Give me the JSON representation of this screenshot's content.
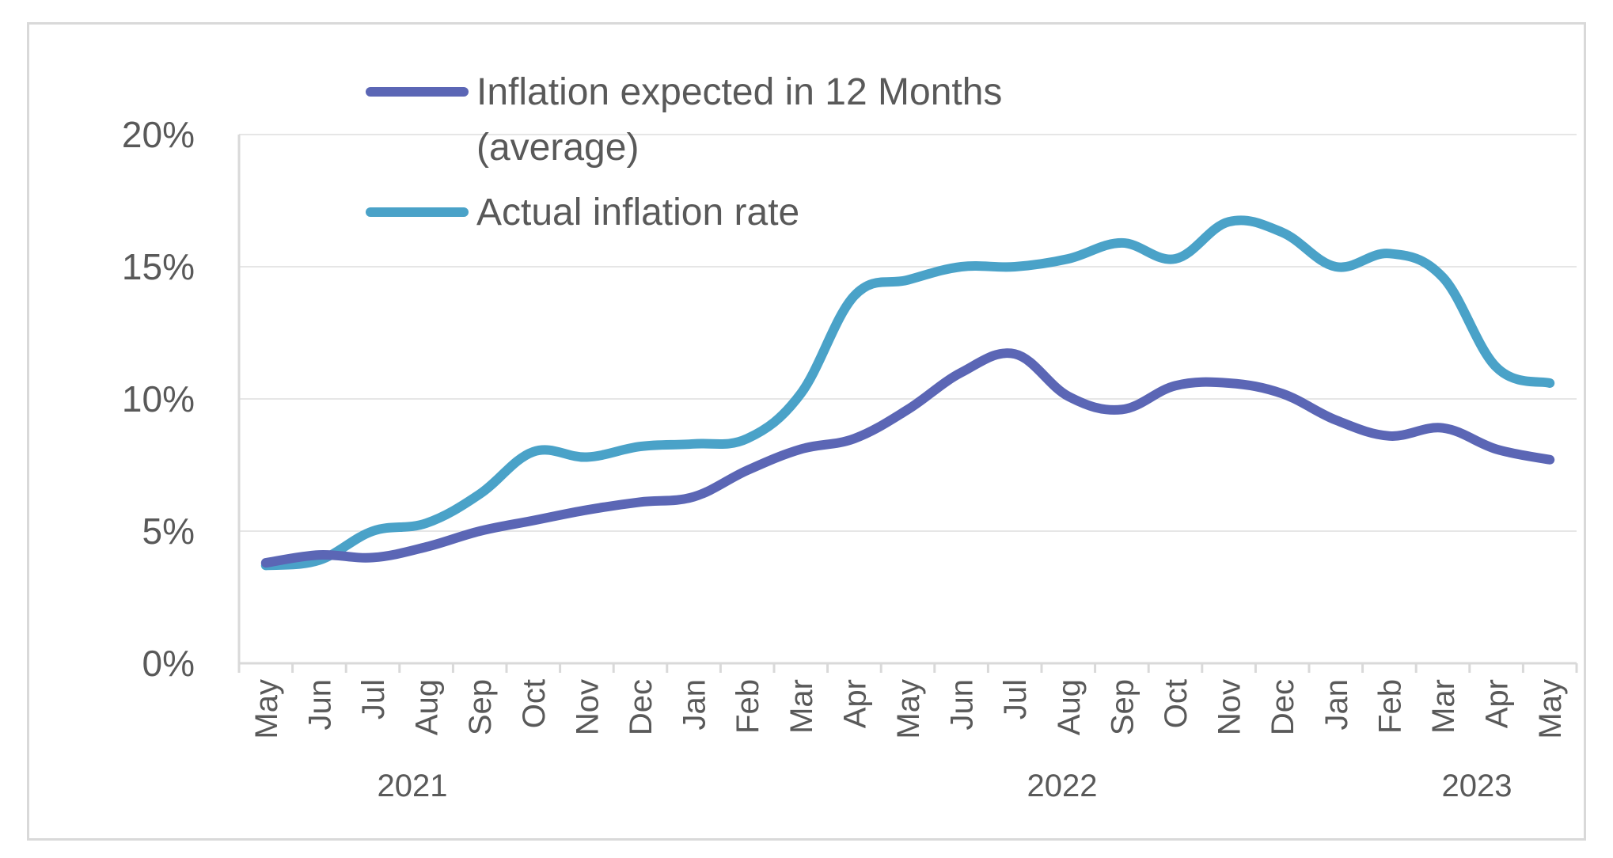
{
  "chart_data": {
    "type": "line",
    "title": "",
    "xlabel": "",
    "ylabel": "",
    "ylim": [
      0,
      20
    ],
    "yticks": [
      "0%",
      "5%",
      "10%",
      "15%",
      "20%"
    ],
    "grid": true,
    "legend_position": "top",
    "categories": [
      "May",
      "Jun",
      "Jul",
      "Aug",
      "Sep",
      "Oct",
      "Nov",
      "Dec",
      "Jan",
      "Feb",
      "Mar",
      "Apr",
      "May",
      "Jun",
      "Jul",
      "Aug",
      "Sep",
      "Oct",
      "Nov",
      "Dec",
      "Jan",
      "Feb",
      "Mar",
      "Apr",
      "May"
    ],
    "year_groups": [
      {
        "label": "2021"
      },
      {
        "label": "2022"
      },
      {
        "label": "2023"
      }
    ],
    "series": [
      {
        "name": "Inflation expected in 12 Months (average)",
        "legend_lines": [
          "Inflation expected in 12 Months",
          "(average)"
        ],
        "color": "#5b66b5",
        "values": [
          3.8,
          4.1,
          4.0,
          4.4,
          5.0,
          5.4,
          5.8,
          6.1,
          6.3,
          7.3,
          8.1,
          8.5,
          9.6,
          11.0,
          11.7,
          10.1,
          9.6,
          10.5,
          10.6,
          10.2,
          9.2,
          8.6,
          8.9,
          8.1,
          7.7
        ]
      },
      {
        "name": "Actual inflation rate",
        "legend_lines": [
          "Actual inflation rate"
        ],
        "color": "#4aa2c8",
        "values": [
          3.7,
          3.9,
          5.0,
          5.3,
          6.4,
          8.0,
          7.8,
          8.2,
          8.3,
          8.5,
          10.2,
          13.9,
          14.5,
          15.0,
          15.0,
          15.3,
          15.9,
          15.3,
          16.7,
          16.3,
          15.0,
          15.5,
          14.6,
          11.2,
          10.6
        ]
      }
    ]
  }
}
